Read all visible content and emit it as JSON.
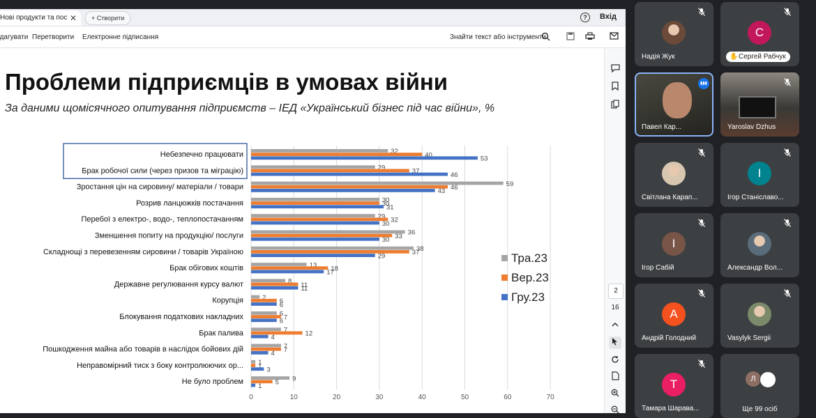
{
  "viewer": {
    "tab_title": "Нові продукти та пос...",
    "tab_close": "✕",
    "new_tab_label": "Створити",
    "signin_label": "Вхід",
    "help_icon": "?",
    "toolbar": {
      "items": [
        "Редагувати",
        "Перетворити",
        "Електронне підписання"
      ],
      "search_label": "Знайти текст або інструменти"
    },
    "page_current": "2",
    "page_total": "16"
  },
  "slide": {
    "title": "Проблеми підприємців в умовах війни",
    "subtitle": "За даними щомісячного опитування підприємств – ІЕД «Український бізнес під час війни», %"
  },
  "chart_data": {
    "type": "bar",
    "orientation": "horizontal",
    "categories": [
      "Небезпечно працювати",
      "Брак робочої сили (через призов та міграцію)",
      "Зростання цін на сировину/ матеріали / товари",
      "Розрив ланцюжків постачання",
      "Перебої з електро-, водо-, теплопостачанням",
      "Зменшення попиту на продукцію/ послуги",
      "Складнощі з перевезенням сировини / товарів Україною",
      "Брак обігових коштів",
      "Державне регулювання курсу валют",
      "Корупція",
      "Блокування податкових накладних",
      "Брак палива",
      "Пошкодження майна або товарів в наслідок бойових дій",
      "Неправомірний тиск з боку контролюючих ор...",
      "Не було проблем"
    ],
    "series": [
      {
        "name": "Тра.23",
        "color": "#a5a5a5",
        "values": [
          32,
          29,
          59,
          30,
          29,
          36,
          38,
          13,
          8,
          2,
          6,
          7,
          7,
          1,
          9
        ]
      },
      {
        "name": "Вер.23",
        "color": "#ed7d31",
        "values": [
          40,
          37,
          46,
          30,
          32,
          33,
          37,
          18,
          11,
          6,
          7,
          12,
          7,
          1,
          5
        ]
      },
      {
        "name": "Гру.23",
        "color": "#4472c4",
        "values": [
          53,
          46,
          43,
          31,
          30,
          30,
          29,
          17,
          11,
          6,
          6,
          4,
          4,
          3,
          1
        ]
      }
    ],
    "xlim": [
      0,
      70
    ],
    "xticks": [
      0,
      10,
      20,
      30,
      40,
      50,
      60,
      70
    ],
    "legend": "right",
    "grid": true,
    "highlighted_categories": [
      0,
      1
    ]
  },
  "participants": [
    {
      "name": "Надія Жук",
      "kind": "photo",
      "color": "#6b4a3a",
      "muted": true
    },
    {
      "name": "Сергей Рабчук",
      "kind": "letter",
      "letter": "С",
      "color": "#c2185b",
      "muted": true,
      "badge": true
    },
    {
      "name": "Павел Кар...",
      "kind": "video",
      "speaking": true
    },
    {
      "name": "Yaroslav Dzhus",
      "kind": "video",
      "muted": true
    },
    {
      "name": "Світлана Карап...",
      "kind": "photo",
      "color": "#d8c7b0",
      "muted": true
    },
    {
      "name": "Ігор Станіславо...",
      "kind": "letter",
      "letter": "І",
      "color": "#00838f",
      "muted": true
    },
    {
      "name": "Ігор Сабій",
      "kind": "letter",
      "letter": "І",
      "color": "#795548",
      "muted": true
    },
    {
      "name": "Александр Вол...",
      "kind": "photo",
      "color": "#5a6b7a",
      "muted": true
    },
    {
      "name": "Андрій Голодний",
      "kind": "letter",
      "letter": "А",
      "color": "#f4511e",
      "muted": true
    },
    {
      "name": "Vasylyk Sergii",
      "kind": "photo",
      "color": "#7a8a6a",
      "muted": true
    },
    {
      "name": "Тамара Шарава...",
      "kind": "letter",
      "letter": "Т",
      "color": "#e91e63",
      "muted": true
    },
    {
      "name": "Ще 99 осіб",
      "kind": "more",
      "mini_letter": "Л"
    }
  ]
}
